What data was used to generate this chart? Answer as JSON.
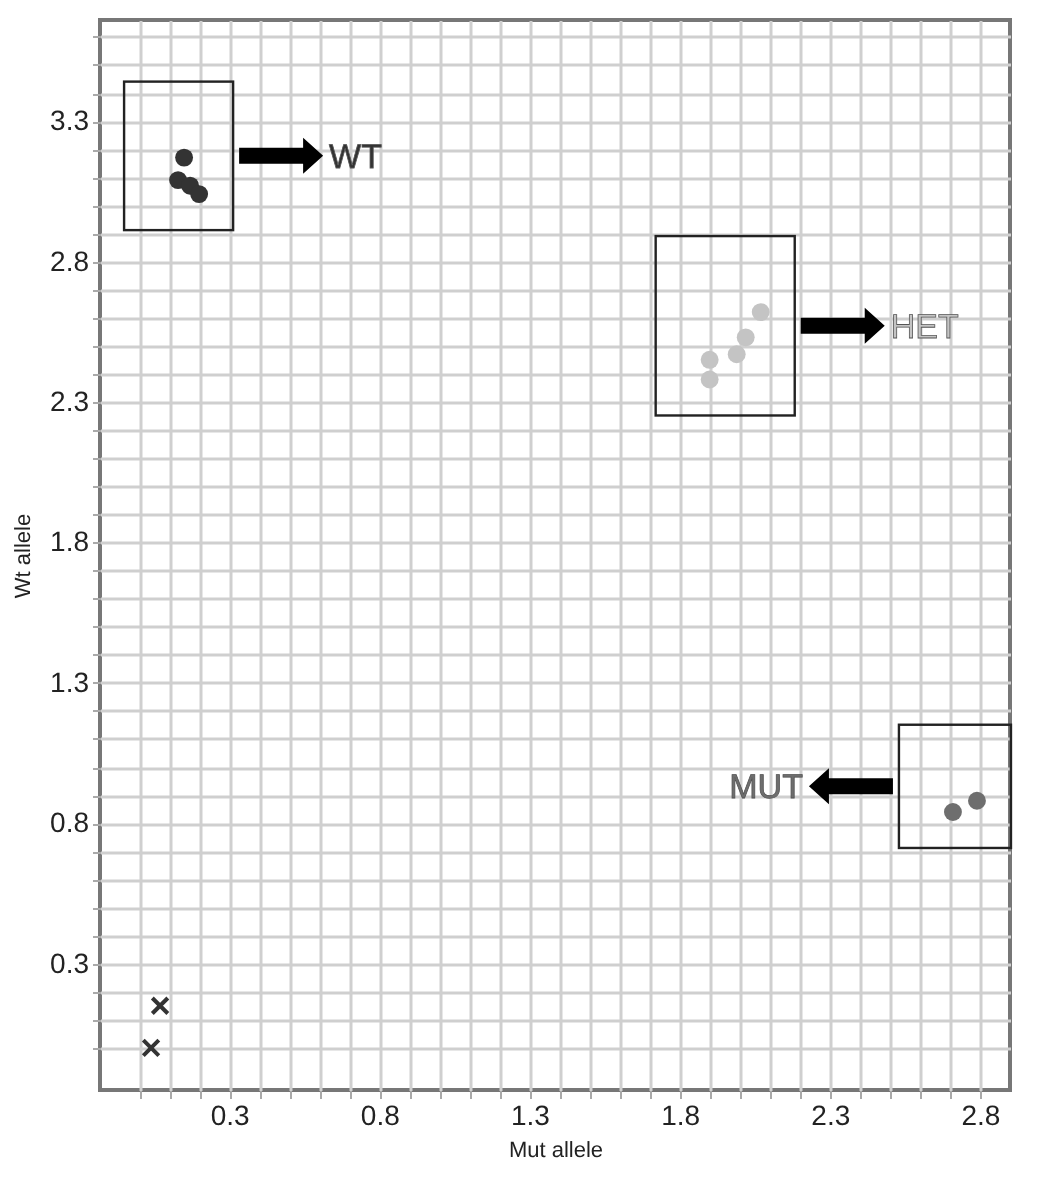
{
  "chart_data": {
    "type": "scatter",
    "xlabel": "Mut allele",
    "ylabel": "Wt allele",
    "xlim": [
      -0.13,
      2.9
    ],
    "ylim": [
      -0.15,
      3.66
    ],
    "xticks": [
      {
        "value": 0,
        "label": null
      },
      {
        "value": 0.1,
        "label": null
      },
      {
        "value": 0.2,
        "label": null
      },
      0.3,
      {
        "value": 0.4,
        "label": null
      },
      {
        "value": 0.5,
        "label": null
      },
      {
        "value": 0.6,
        "label": null
      },
      {
        "value": 0.7,
        "label": null
      },
      0.8,
      {
        "value": 0.9,
        "label": null
      },
      {
        "value": 1,
        "label": null
      },
      {
        "value": 1.1,
        "label": null
      },
      {
        "value": 1.2,
        "label": null
      },
      1.3,
      {
        "value": 1.4,
        "label": null
      },
      {
        "value": 1.5,
        "label": null
      },
      {
        "value": 1.6,
        "label": null
      },
      {
        "value": 1.7,
        "label": null
      },
      1.8,
      {
        "value": 1.9,
        "label": null
      },
      {
        "value": 2,
        "label": null
      },
      {
        "value": 2.1,
        "label": null
      },
      {
        "value": 2.2,
        "label": null
      },
      2.3,
      {
        "value": 2.4,
        "label": null
      },
      {
        "value": 2.5,
        "label": null
      },
      {
        "value": 2.6,
        "label": null
      },
      {
        "value": 2.7,
        "label": null
      },
      2.8
    ],
    "yticks": [
      {
        "value": 0,
        "label": null
      },
      {
        "value": 0.1,
        "label": null
      },
      {
        "value": 0.2,
        "label": null
      },
      0.3,
      {
        "value": 0.4,
        "label": null
      },
      {
        "value": 0.5,
        "label": null
      },
      {
        "value": 0.6,
        "label": null
      },
      {
        "value": 0.7,
        "label": null
      },
      0.8,
      {
        "value": 0.9,
        "label": null
      },
      {
        "value": 1,
        "label": null
      },
      {
        "value": 1.1,
        "label": null
      },
      {
        "value": 1.2,
        "label": null
      },
      1.3,
      {
        "value": 1.4,
        "label": null
      },
      {
        "value": 1.5,
        "label": null
      },
      {
        "value": 1.6,
        "label": null
      },
      {
        "value": 1.7,
        "label": null
      },
      1.8,
      {
        "value": 1.9,
        "label": null
      },
      {
        "value": 2,
        "label": null
      },
      {
        "value": 2.1,
        "label": null
      },
      {
        "value": 2.2,
        "label": null
      },
      2.3,
      {
        "value": 2.4,
        "label": null
      },
      {
        "value": 2.5,
        "label": null
      },
      {
        "value": 2.6,
        "label": null
      },
      {
        "value": 2.7,
        "label": null
      },
      2.8,
      {
        "value": 2.9,
        "label": null
      },
      {
        "value": 3,
        "label": null
      },
      {
        "value": 3.1,
        "label": null
      },
      {
        "value": 3.2,
        "label": null
      },
      3.3,
      {
        "value": 3.4,
        "label": null
      },
      {
        "value": 3.5,
        "label": null
      },
      {
        "value": 3.6,
        "label": null
      }
    ],
    "grid": true,
    "marker": "circle",
    "series": [
      {
        "name": "WT",
        "color": "#333333",
        "x": [
          0.15,
          0.13,
          0.17,
          0.2
        ],
        "values": [
          3.17,
          3.09,
          3.07,
          3.04
        ]
      },
      {
        "name": "HET",
        "color": "#c4c4c4",
        "x": [
          2.07,
          2.02,
          1.99,
          1.9,
          1.9
        ],
        "values": [
          2.62,
          2.53,
          2.47,
          2.45,
          2.38
        ]
      },
      {
        "name": "MUT",
        "color": "#6e6e6e",
        "x": [
          2.71,
          2.79
        ],
        "values": [
          0.84,
          0.88
        ]
      },
      {
        "color": "#333333",
        "marker": "cross",
        "x": [
          0.07,
          0.04
        ],
        "values": [
          0.15,
          0.0
        ]
      }
    ]
  }
}
